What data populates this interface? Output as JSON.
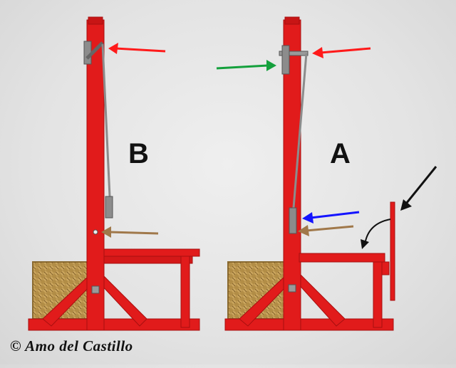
{
  "labels": {
    "left": "B",
    "right": "A"
  },
  "copyright": "© Amo del Castillo",
  "colors": {
    "frame": "#e11b1b",
    "frame_dark": "#a80f0f",
    "rope": "#8c8c8c",
    "basket": "#c9a45c",
    "arrow_red": "#ff1a1a",
    "arrow_green": "#14a03c",
    "arrow_blue": "#1414ff",
    "arrow_brown": "#a0784a",
    "arrow_black": "#111111"
  },
  "icons": {
    "red": "arrow-right-to-left-icon",
    "green": "arrow-left-to-right-icon",
    "blue": "arrow-right-to-left-icon",
    "brown": "arrow-right-to-left-icon",
    "black": "arrow-diagonal-icon",
    "curved": "curved-arrow-icon"
  }
}
